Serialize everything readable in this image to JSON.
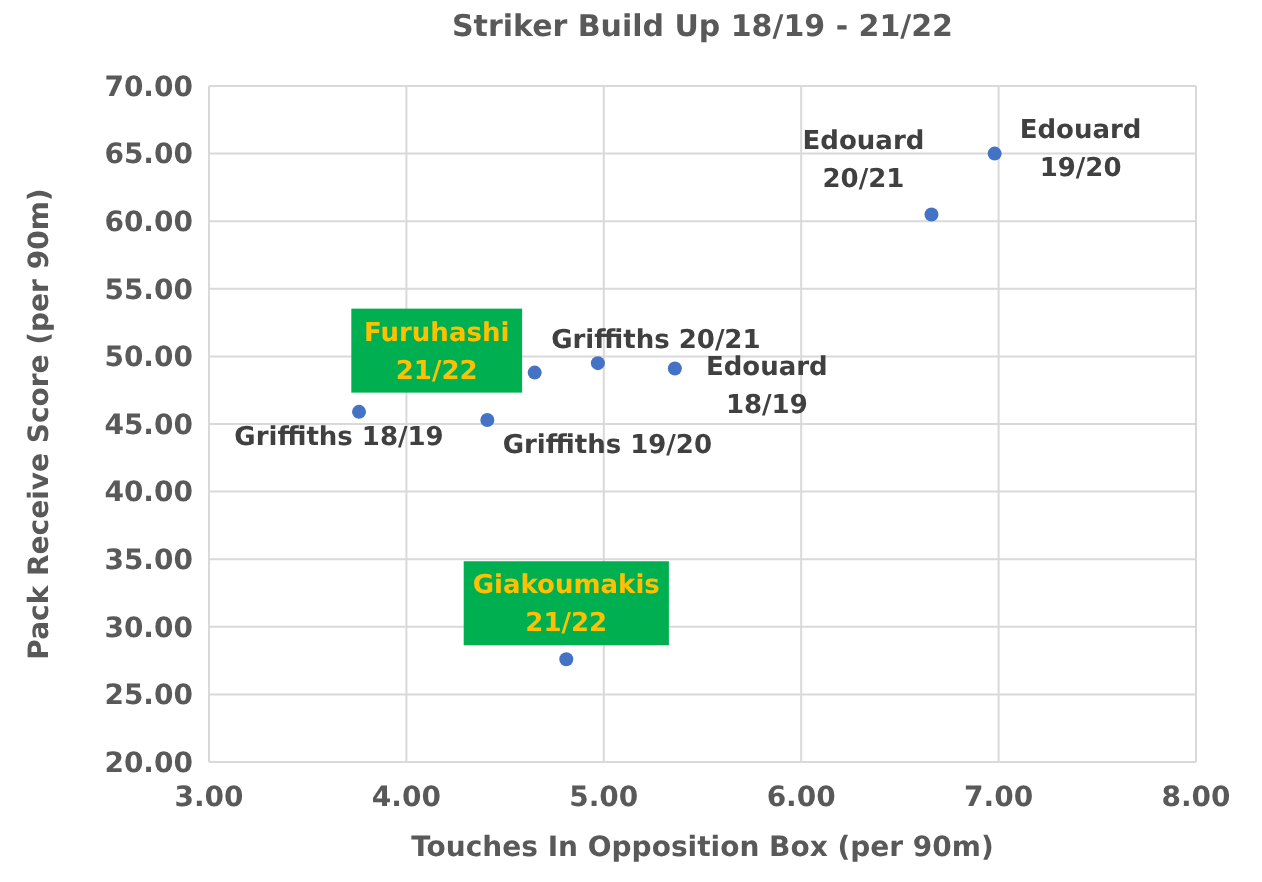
{
  "chart_data": {
    "type": "scatter",
    "title": "Striker Build Up 18/19 - 21/22",
    "xlabel": "Touches In Opposition Box (per 90m)",
    "ylabel": "Pack Receive Score (per 90m)",
    "xlim": [
      3,
      8
    ],
    "xticks": [
      {
        "value": 3,
        "label": "3.00"
      },
      {
        "value": 4,
        "label": "4.00"
      },
      {
        "value": 5,
        "label": "5.00"
      },
      {
        "value": 6,
        "label": "6.00"
      },
      {
        "value": 7,
        "label": "7.00"
      },
      {
        "value": 8,
        "label": "8.00"
      }
    ],
    "ylim": [
      20,
      70
    ],
    "yticks": [
      {
        "value": 20,
        "label": "20.00"
      },
      {
        "value": 25,
        "label": "25.00"
      },
      {
        "value": 30,
        "label": "30.00"
      },
      {
        "value": 35,
        "label": "35.00"
      },
      {
        "value": 40,
        "label": "40.00"
      },
      {
        "value": 45,
        "label": "45.00"
      },
      {
        "value": 50,
        "label": "50.00"
      },
      {
        "value": 55,
        "label": "55.00"
      },
      {
        "value": 60,
        "label": "60.00"
      },
      {
        "value": 65,
        "label": "65.00"
      },
      {
        "value": 70,
        "label": "70.00"
      }
    ],
    "grid": true,
    "marker": "circle",
    "series": [
      {
        "color": "#4472c4",
        "x": [
          3.76,
          4.41,
          4.97,
          5.36,
          6.66,
          6.98
        ],
        "values": [
          45.9,
          45.3,
          49.5,
          49.1,
          60.5,
          65.0
        ],
        "value_labels": [
          "Griffiths 18/19",
          "Griffiths 19/20",
          "Griffiths 20/21",
          "Edouard 18/19",
          "Edouard 20/21",
          "Edouard 19/20"
        ]
      },
      {
        "color": "#4472c4",
        "x": [
          4.65,
          4.81
        ],
        "values": [
          48.8,
          27.6
        ],
        "value_labels": [
          "Furuhashi 21/22",
          "Giakoumakis 21/22"
        ]
      }
    ]
  }
}
